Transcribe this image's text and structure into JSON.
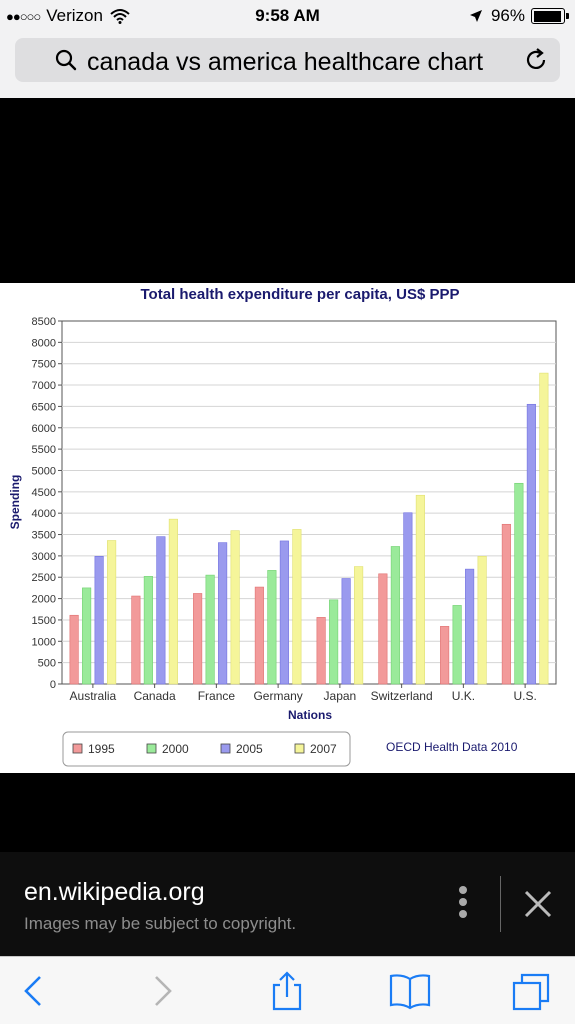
{
  "status_bar": {
    "carrier": "Verizon",
    "signal_dots": "●●○○○",
    "time": "9:58 AM",
    "battery": "96%",
    "battery_level": 0.96
  },
  "browser": {
    "search_query": "canada vs america healthcare chart"
  },
  "caption": {
    "site": "en.wikipedia.org",
    "notice": "Images may be subject to copyright."
  },
  "colors": {
    "accent": "#1a7cf5",
    "series": [
      "#f29a9a",
      "#9aea9a",
      "#9a9aee",
      "#f5f59a"
    ],
    "series_stroke": [
      "#e07070",
      "#70d070",
      "#7070e0",
      "#e0e070"
    ]
  },
  "chart_data": {
    "type": "bar",
    "title": "Total health expenditure per capita, US$ PPP",
    "xlabel": "Nations",
    "ylabel": "Spending",
    "ylim": [
      0,
      8500
    ],
    "yticks": [
      0,
      500,
      1000,
      1500,
      2000,
      2500,
      3000,
      3500,
      4000,
      4500,
      5000,
      5500,
      6000,
      6500,
      7000,
      7500,
      8000,
      8500
    ],
    "grid": true,
    "legend_position": "bottom-left",
    "source_note": "OECD Health Data 2010",
    "categories": [
      "Australia",
      "Canada",
      "France",
      "Germany",
      "Japan",
      "Switzerland",
      "U.K.",
      "U.S."
    ],
    "series": [
      {
        "name": "1995",
        "values": [
          1610,
          2060,
          2120,
          2270,
          1560,
          2580,
          1350,
          3740
        ]
      },
      {
        "name": "2000",
        "values": [
          2250,
          2520,
          2550,
          2660,
          1970,
          3220,
          1840,
          4700
        ]
      },
      {
        "name": "2005",
        "values": [
          2990,
          3450,
          3310,
          3350,
          2470,
          4010,
          2690,
          6550
        ]
      },
      {
        "name": "2007",
        "values": [
          3360,
          3860,
          3590,
          3620,
          2750,
          4420,
          2990,
          7280
        ]
      }
    ]
  }
}
